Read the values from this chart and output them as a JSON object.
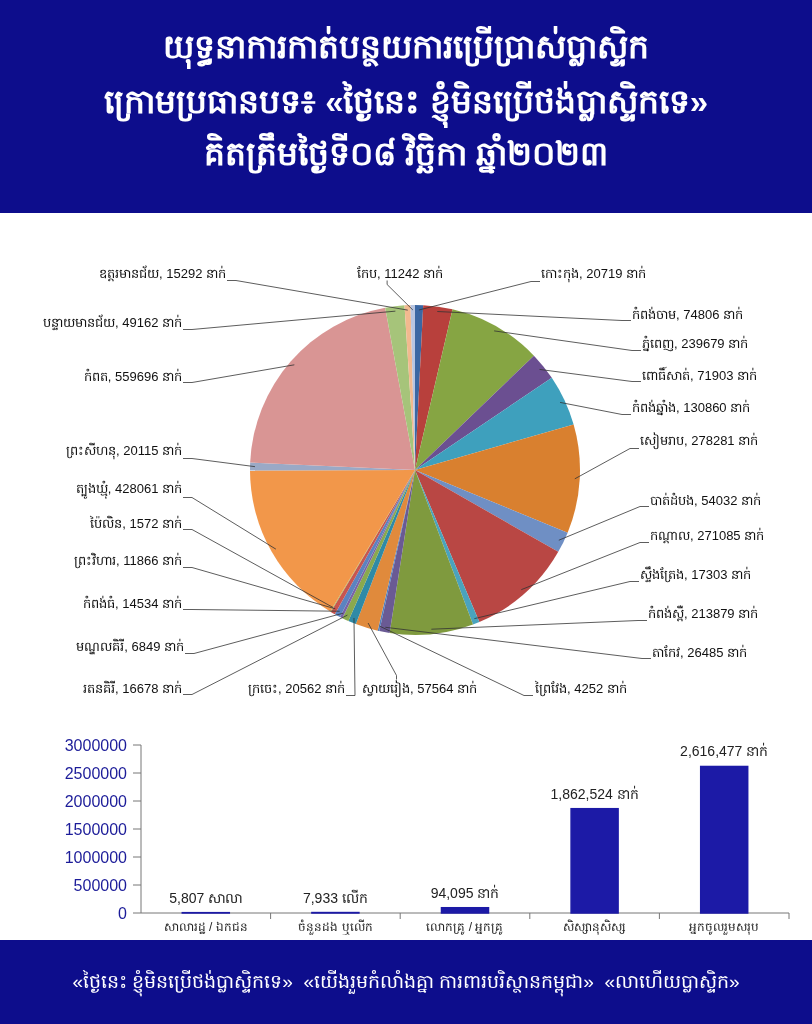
{
  "chart_data": [
    {
      "type": "pie",
      "title": "យុទ្ធនាការកាត់បន្ថយការប្រើប្រាស់ប្លាស្ទិក",
      "subtitle": "ក្រោមប្រធានបទ៖ «ថ្ងៃនេះ ខ្ញុំមិនប្រើថង់ប្លាស្ទិកទេ»\nគិតត្រឹមថ្ងៃទី០៨ វិច្ឆិកា ឆ្នាំ២០២៣",
      "categories": [
        "កោះកុង",
        "កំពង់ចាម",
        "ភ្នំពេញ",
        "ពោធិ៍សាត់",
        "កំពង់ឆ្នាំង",
        "សៀមរាប",
        "បាត់ដំបង",
        "កណ្ដាល",
        "ស្ទឹងត្រែង",
        "កំពង់ស្ពឺ",
        "តាកែវ",
        "ព្រៃវែង",
        "ស្វាយរៀង",
        "ក្រចេះ",
        "រតនគិរី",
        "មណ្ឌលគិរី",
        "កំពង់ធំ",
        "ព្រះវិហារ",
        "ប៉ៃលិន",
        "ត្បូងឃ្មុំ",
        "ព្រះសីហនុ",
        "កំពត",
        "បន្ទាយមានជ័យ",
        "ឧត្ដរមានជ័យ",
        "កែប"
      ],
      "values": [
        20719,
        74806,
        239679,
        71903,
        130860,
        278281,
        54032,
        271085,
        17303,
        213879,
        26485,
        4252,
        57564,
        20562,
        16678,
        6849,
        14534,
        11866,
        1572,
        428061,
        20115,
        559696,
        49162,
        15292,
        11242
      ],
      "value_labels": [
        "20719 នាក់",
        "74806 នាក់",
        "239679 នាក់",
        "71903 នាក់",
        "130860 នាក់",
        "278281 នាក់",
        "54032 នាក់",
        "271085 នាក់",
        "17303 នាក់",
        "213879 នាក់",
        "26485 នាក់",
        "4252 នាក់",
        "57564 នាក់",
        "20562 នាក់",
        "16678 នាក់",
        "6849 នាក់",
        "14534 នាក់",
        "11866 នាក់",
        "1572 នាក់",
        "428061 នាក់",
        "20115 នាក់",
        "559696 នាក់",
        "49162 នាក់",
        "15292 នាក់",
        "11242 នាក់"
      ],
      "colors": [
        "#3b67a3",
        "#b8403c",
        "#86a543",
        "#6b4f91",
        "#3ea0bd",
        "#d9802f",
        "#6f8fc4",
        "#b94744",
        "#4aa3bd",
        "#7f9a3e",
        "#6a5a94",
        "#4f7fbf",
        "#e08a3c",
        "#2f8aa6",
        "#8aa94e",
        "#7a63a6",
        "#5b83c0",
        "#c8554f",
        "#9bbb59",
        "#f2974a",
        "#9aa9c6",
        "#d99594",
        "#a6c47a",
        "#f2b98f",
        "#b8c5e1"
      ]
    },
    {
      "type": "bar",
      "categories": [
        "សាលារដ្ឋ / ឯកជន",
        "ចំនួនដង ឬលើក",
        "លោកគ្រូ / អ្នកគ្រូ",
        "សិស្សានុសិស្ស",
        "អ្នកចូលរួមសរុប"
      ],
      "values": [
        5807,
        7933,
        94095,
        1862524,
        2616477
      ],
      "color": "#1c1aa6",
      "value_labels": [
        "5,807 សាលា",
        "7,933 លើក",
        "94,095 នាក់",
        "1,862,524 នាក់",
        "2,616,477 នាក់"
      ],
      "ylim": [
        0,
        3000000
      ],
      "yticks": [
        0,
        500000,
        1000000,
        1500000,
        2000000,
        2500000,
        3000000
      ],
      "annotations": [
        "«ថ្ងៃនេះ ខ្ញុំមិនប្រើថង់ប្លាស្ទិកទេ»  «យើងរួមកំលាំងគ្នា ការពារបរិស្ថានកម្ពុជា»  «លាហើយប្លាស្ទិក»"
      ]
    }
  ]
}
